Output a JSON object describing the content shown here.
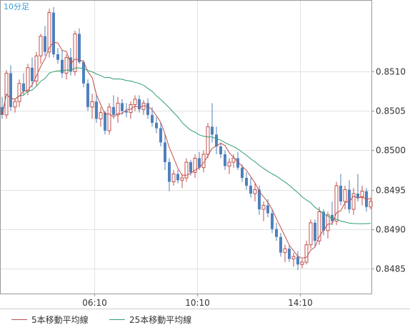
{
  "chart_data": {
    "type": "candlestick",
    "period_label": "10分足",
    "ylim": [
      0.84818,
      0.85191
    ],
    "y_ticks": [
      {
        "value": 0.8485,
        "label": "0.8485"
      },
      {
        "value": 0.849,
        "label": "0.8490"
      },
      {
        "value": 0.8495,
        "label": "0.8495"
      },
      {
        "value": 0.85,
        "label": "0.8500"
      },
      {
        "value": 0.8505,
        "label": "0.8505"
      },
      {
        "value": 0.851,
        "label": "0.8510"
      }
    ],
    "x_ticks": [
      {
        "bar": 21.5,
        "label": "06:10"
      },
      {
        "bar": 45.5,
        "label": "10:10"
      },
      {
        "bar": 69.5,
        "label": "14:10"
      }
    ],
    "bar_count": 87,
    "grid": true,
    "legend_position": "bottom-left",
    "colors": {
      "up": "#c0504d",
      "down": "#4f81bd",
      "ma5": "#c0504d",
      "ma25": "#2e9e6e",
      "grid": "#e2e2e2",
      "frame": "#999999",
      "period_label": "#3a9bd9"
    },
    "legend": [
      {
        "name": "5本移動平均線",
        "color": "#c0504d"
      },
      {
        "name": "25本移動平均線",
        "color": "#2e9e6e"
      }
    ],
    "ohlc": [
      [
        0.85055,
        0.85068,
        0.8504,
        0.85045
      ],
      [
        0.85045,
        0.85102,
        0.8504,
        0.85098
      ],
      [
        0.85098,
        0.85108,
        0.8505,
        0.85055
      ],
      [
        0.85055,
        0.85065,
        0.85048,
        0.85062
      ],
      [
        0.85062,
        0.8509,
        0.85055,
        0.85085
      ],
      [
        0.85085,
        0.85098,
        0.8507,
        0.85075
      ],
      [
        0.85075,
        0.8511,
        0.8507,
        0.85105
      ],
      [
        0.85105,
        0.85118,
        0.8508,
        0.85088
      ],
      [
        0.85088,
        0.85125,
        0.85082,
        0.8512
      ],
      [
        0.8512,
        0.85148,
        0.8511,
        0.85145
      ],
      [
        0.85145,
        0.85158,
        0.8512,
        0.85125
      ],
      [
        0.85125,
        0.8518,
        0.85118,
        0.85175
      ],
      [
        0.85175,
        0.85182,
        0.85118,
        0.85122
      ],
      [
        0.85122,
        0.8513,
        0.8511,
        0.85115
      ],
      [
        0.85115,
        0.85128,
        0.85092,
        0.85098
      ],
      [
        0.85098,
        0.85122,
        0.8509,
        0.85118
      ],
      [
        0.85118,
        0.8513,
        0.85095,
        0.851
      ],
      [
        0.851,
        0.85152,
        0.85095,
        0.85148
      ],
      [
        0.85148,
        0.85155,
        0.8511,
        0.85112
      ],
      [
        0.85112,
        0.85115,
        0.8508,
        0.85085
      ],
      [
        0.85085,
        0.8509,
        0.8505,
        0.85055
      ],
      [
        0.85055,
        0.85072,
        0.8504,
        0.85062
      ],
      [
        0.85062,
        0.85072,
        0.85035,
        0.8504
      ],
      [
        0.8504,
        0.85055,
        0.8503,
        0.85048
      ],
      [
        0.85048,
        0.8505,
        0.8502,
        0.85025
      ],
      [
        0.85025,
        0.8506,
        0.8502,
        0.85055
      ],
      [
        0.85055,
        0.8507,
        0.8504,
        0.85045
      ],
      [
        0.85045,
        0.85068,
        0.85035,
        0.8506
      ],
      [
        0.8506,
        0.85065,
        0.85045,
        0.8505
      ],
      [
        0.8505,
        0.8506,
        0.85042,
        0.85048
      ],
      [
        0.85048,
        0.85062,
        0.8504,
        0.85058
      ],
      [
        0.85058,
        0.8507,
        0.8505,
        0.85065
      ],
      [
        0.85065,
        0.8507,
        0.85048,
        0.85052
      ],
      [
        0.85052,
        0.85064,
        0.85045,
        0.8506
      ],
      [
        0.8506,
        0.85066,
        0.8504,
        0.85045
      ],
      [
        0.85045,
        0.85055,
        0.8503,
        0.85035
      ],
      [
        0.85035,
        0.85042,
        0.85022,
        0.85028
      ],
      [
        0.85028,
        0.85035,
        0.85005,
        0.8501
      ],
      [
        0.8501,
        0.8502,
        0.84975,
        0.84985
      ],
      [
        0.84985,
        0.8499,
        0.84948,
        0.8496
      ],
      [
        0.8496,
        0.84975,
        0.84955,
        0.8497
      ],
      [
        0.8497,
        0.84975,
        0.84958,
        0.84962
      ],
      [
        0.84962,
        0.8497,
        0.84952,
        0.84965
      ],
      [
        0.84965,
        0.8499,
        0.8496,
        0.84985
      ],
      [
        0.84985,
        0.84988,
        0.84968,
        0.84972
      ],
      [
        0.84972,
        0.84995,
        0.84965,
        0.8499
      ],
      [
        0.8499,
        0.84998,
        0.84975,
        0.84978
      ],
      [
        0.84978,
        0.85,
        0.84972,
        0.84995
      ],
      [
        0.84995,
        0.85035,
        0.8499,
        0.8503
      ],
      [
        0.8503,
        0.8506,
        0.8501,
        0.8502
      ],
      [
        0.8502,
        0.8503,
        0.84995,
        0.85005
      ],
      [
        0.85005,
        0.8501,
        0.8499,
        0.84995
      ],
      [
        0.84995,
        0.85,
        0.84975,
        0.8498
      ],
      [
        0.8498,
        0.8499,
        0.8497,
        0.84985
      ],
      [
        0.84985,
        0.84995,
        0.84978,
        0.8499
      ],
      [
        0.8499,
        0.84998,
        0.84975,
        0.84978
      ],
      [
        0.84978,
        0.84982,
        0.8496,
        0.84965
      ],
      [
        0.84965,
        0.84972,
        0.8495,
        0.84955
      ],
      [
        0.84955,
        0.84965,
        0.8494,
        0.84945
      ],
      [
        0.84945,
        0.84958,
        0.84935,
        0.8495
      ],
      [
        0.8495,
        0.84955,
        0.84918,
        0.84925
      ],
      [
        0.84925,
        0.84935,
        0.8491,
        0.8493
      ],
      [
        0.8493,
        0.84938,
        0.84915,
        0.8492
      ],
      [
        0.8492,
        0.84925,
        0.84895,
        0.849
      ],
      [
        0.849,
        0.84908,
        0.84885,
        0.8489
      ],
      [
        0.8489,
        0.84895,
        0.84865,
        0.8487
      ],
      [
        0.8487,
        0.8488,
        0.84858,
        0.84875
      ],
      [
        0.84875,
        0.8488,
        0.84858,
        0.84862
      ],
      [
        0.84862,
        0.8487,
        0.84852,
        0.84865
      ],
      [
        0.84865,
        0.84872,
        0.84848,
        0.84855
      ],
      [
        0.84855,
        0.84862,
        0.8485,
        0.84858
      ],
      [
        0.84858,
        0.84885,
        0.84855,
        0.8488
      ],
      [
        0.8488,
        0.84912,
        0.84875,
        0.84908
      ],
      [
        0.84908,
        0.84912,
        0.84878,
        0.84885
      ],
      [
        0.84885,
        0.84928,
        0.8488,
        0.84922
      ],
      [
        0.84922,
        0.84925,
        0.84892,
        0.84898
      ],
      [
        0.84898,
        0.84922,
        0.84888,
        0.84918
      ],
      [
        0.84918,
        0.84935,
        0.84905,
        0.8491
      ],
      [
        0.8491,
        0.8496,
        0.84905,
        0.84955
      ],
      [
        0.84955,
        0.8497,
        0.8493,
        0.84935
      ],
      [
        0.84935,
        0.84955,
        0.84925,
        0.8495
      ],
      [
        0.8495,
        0.84962,
        0.8492,
        0.84925
      ],
      [
        0.84925,
        0.84952,
        0.84918,
        0.84945
      ],
      [
        0.84945,
        0.8497,
        0.84935,
        0.8494
      ],
      [
        0.8494,
        0.84955,
        0.8493,
        0.84948
      ],
      [
        0.84948,
        0.84952,
        0.84922,
        0.84928
      ],
      [
        0.84928,
        0.8494,
        0.84925,
        0.84935
      ]
    ]
  }
}
